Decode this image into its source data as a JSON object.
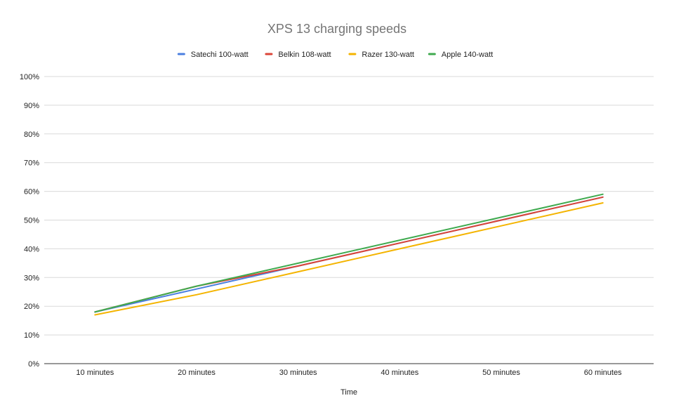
{
  "chart_data": {
    "type": "line",
    "title": "XPS 13 charging speeds",
    "xlabel": "Time",
    "ylabel": "",
    "categories": [
      "10 minutes",
      "20 minutes",
      "30 minutes",
      "40 minutes",
      "50 minutes",
      "60 minutes"
    ],
    "ylim": [
      0,
      100
    ],
    "yticks": [
      "0%",
      "10%",
      "20%",
      "30%",
      "40%",
      "50%",
      "60%",
      "70%",
      "80%",
      "90%",
      "100%"
    ],
    "grid": true,
    "legend_position": "top",
    "series": [
      {
        "name": "Satechi 100-watt",
        "color": "#4a7fe0",
        "values": [
          18,
          26,
          34,
          42,
          50,
          58
        ]
      },
      {
        "name": "Belkin 108-watt",
        "color": "#db4437",
        "values": [
          18,
          27,
          34,
          42,
          50,
          58
        ]
      },
      {
        "name": "Razer 130-watt",
        "color": "#f4b400",
        "values": [
          17,
          24,
          32,
          40,
          48,
          56
        ]
      },
      {
        "name": "Apple 140-watt",
        "color": "#3faa4f",
        "values": [
          18,
          27,
          35,
          43,
          51,
          59
        ]
      }
    ]
  }
}
